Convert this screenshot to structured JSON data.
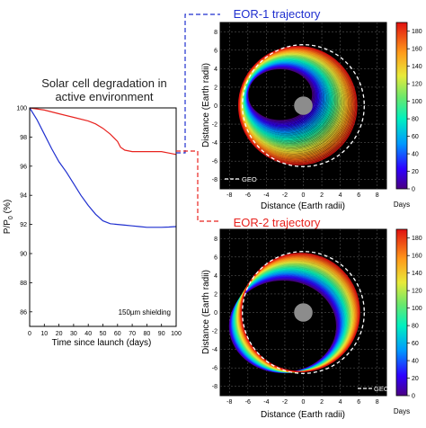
{
  "chart_data": [
    {
      "type": "line",
      "title": "Solar cell degradation in active environment",
      "title_lines": [
        "Solar cell degradation in",
        "active environment"
      ],
      "xlabel": "Time since launch (days)",
      "ylabel": "P/P",
      "ylabel_sub": "0",
      "ylabel_unit": " (%)",
      "xlim": [
        0,
        100
      ],
      "ylim": [
        85,
        100
      ],
      "xticks": [
        "0",
        "10",
        "20",
        "30",
        "40",
        "50",
        "60",
        "70",
        "80",
        "90",
        "100"
      ],
      "yticks": [
        "86",
        "88",
        "90",
        "92",
        "94",
        "96",
        "98",
        "100"
      ],
      "annotation": "150µm shielding",
      "series": [
        {
          "color": "#e8231f",
          "x": [
            0,
            10,
            20,
            30,
            40,
            45,
            50,
            55,
            60,
            62,
            65,
            70,
            75,
            80,
            85,
            90,
            95,
            100
          ],
          "y": [
            100,
            99.85,
            99.6,
            99.35,
            99.1,
            98.9,
            98.6,
            98.2,
            97.7,
            97.3,
            97.1,
            97.0,
            97.0,
            97.0,
            97.0,
            97.0,
            96.9,
            96.8
          ]
        },
        {
          "color": "#1f2fcf",
          "x": [
            0,
            5,
            10,
            15,
            20,
            25,
            30,
            35,
            40,
            45,
            50,
            55,
            60,
            65,
            70,
            75,
            80,
            85,
            90,
            95,
            100
          ],
          "y": [
            100,
            99.2,
            98.2,
            97.2,
            96.3,
            95.6,
            94.8,
            94.0,
            93.3,
            92.7,
            92.25,
            92.05,
            92.0,
            91.95,
            91.9,
            91.85,
            91.8,
            91.8,
            91.8,
            91.82,
            91.85
          ]
        }
      ]
    },
    {
      "type": "scatter",
      "title": "EOR-1 trajectory",
      "title_color": "#1f2fcf",
      "xlabel": "Distance (Earth radii)",
      "ylabel": "Distance (Earth radii)",
      "xlim": [
        -9,
        9
      ],
      "ylim": [
        -9,
        9
      ],
      "xticks": [
        "-8",
        "-6",
        "-4",
        "-2",
        "0",
        "2",
        "4",
        "6",
        "8"
      ],
      "yticks": [
        "-8",
        "-6",
        "-4",
        "-2",
        "0",
        "2",
        "4",
        "6",
        "8"
      ],
      "legend": "GEO",
      "legend_position": "bottom-left",
      "colorbar_label": "Days",
      "colorbar_ticks": [
        "0",
        "20",
        "40",
        "60",
        "80",
        "100",
        "120",
        "140",
        "160",
        "180"
      ],
      "colorbar_range": [
        0,
        190
      ],
      "geo_radius": 6.6,
      "earth_radius": 1.0,
      "orbits": {
        "start": [
          3.5,
          2.8,
          -2.5,
          1.2
        ],
        "end": [
          6.4,
          6.4,
          -0.6,
          0
        ]
      }
    },
    {
      "type": "scatter",
      "title": "EOR-2 trajectory",
      "title_color": "#e8231f",
      "xlabel": "Distance (Earth radii)",
      "ylabel": "Distance (Earth radii)",
      "xlim": [
        -9,
        9
      ],
      "ylim": [
        -9,
        9
      ],
      "xticks": [
        "-8",
        "-6",
        "-4",
        "-2",
        "0",
        "2",
        "4",
        "6",
        "8"
      ],
      "yticks": [
        "-8",
        "-6",
        "-4",
        "-2",
        "0",
        "2",
        "4",
        "6",
        "8"
      ],
      "legend": "GEO",
      "legend_position": "bottom-right",
      "colorbar_label": "Days",
      "colorbar_ticks": [
        "0",
        "20",
        "40",
        "60",
        "80",
        "100",
        "120",
        "140",
        "160",
        "180"
      ],
      "colorbar_range": [
        0,
        190
      ],
      "geo_radius": 6.6,
      "earth_radius": 1.0,
      "orbits": {
        "start": [
          5.8,
          5.0,
          -2.2,
          -1.5
        ],
        "end": [
          6.4,
          6.4,
          -0.3,
          0
        ]
      }
    }
  ]
}
